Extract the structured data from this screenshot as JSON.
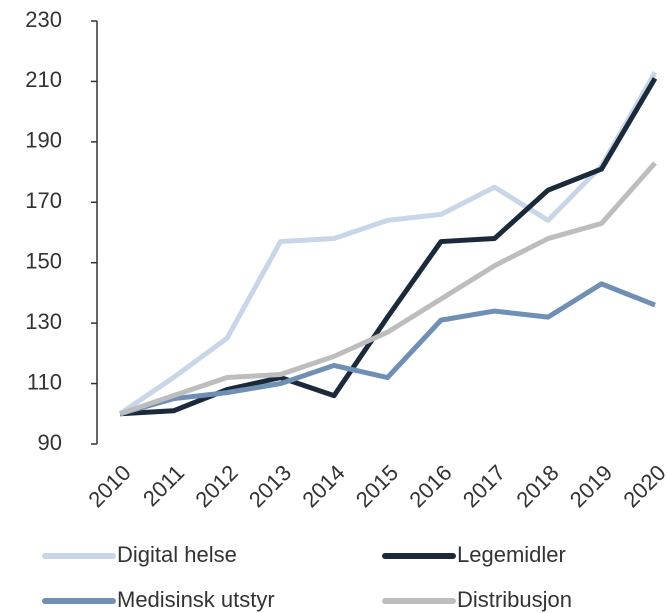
{
  "chart_data": {
    "type": "line",
    "categories": [
      "2010",
      "2011",
      "2012",
      "2013",
      "2014",
      "2015",
      "2016",
      "2017",
      "2018",
      "2019",
      "2020"
    ],
    "series": [
      {
        "name": "Digital helse",
        "color": "#c9d6e8",
        "values": [
          100,
          112,
          125,
          157,
          158,
          164,
          166,
          175,
          164,
          182,
          213
        ]
      },
      {
        "name": "Legemidler",
        "color": "#1b2a3a",
        "values": [
          100,
          101,
          108,
          112,
          106,
          132,
          157,
          158,
          174,
          181,
          211
        ]
      },
      {
        "name": "Medisinsk utstyr",
        "color": "#6f8fb5",
        "values": [
          100,
          105,
          107,
          110,
          116,
          112,
          131,
          134,
          132,
          143,
          136
        ]
      },
      {
        "name": "Distribusjon",
        "color": "#bdbdbd",
        "values": [
          100,
          106,
          112,
          113,
          119,
          127,
          138,
          149,
          158,
          163,
          183
        ]
      }
    ],
    "ylim": [
      90,
      230
    ],
    "yticks": [
      90,
      110,
      130,
      150,
      170,
      190,
      210,
      230
    ],
    "grid": false
  }
}
